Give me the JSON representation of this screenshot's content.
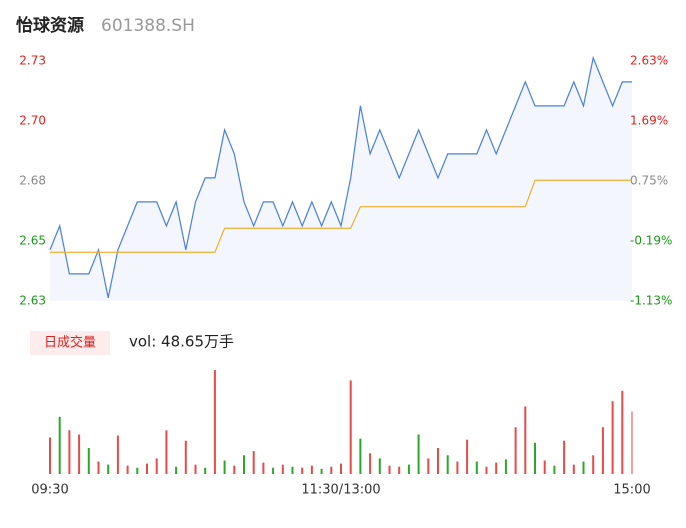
{
  "chart_data": {
    "type": "intraday",
    "title": "怡球资源",
    "code": "601388.SH",
    "volume_tab": "日成交量",
    "volume_label": "vol: 48.65万手",
    "xlim": [
      0,
      240
    ],
    "xticks": [
      {
        "value": 0,
        "label": "09:30"
      },
      {
        "value": 120,
        "label": "11:30/13:00"
      },
      {
        "value": 240,
        "label": "15:00"
      }
    ],
    "ylim": [
      2.6287,
      2.7287
    ],
    "yticks": [
      {
        "value": 2.6287,
        "label": "2.63"
      },
      {
        "value": 2.6537,
        "label": "2.65"
      },
      {
        "value": 2.6787,
        "label": "2.68"
      },
      {
        "value": 2.7037,
        "label": "2.70"
      },
      {
        "value": 2.7287,
        "label": "2.73"
      }
    ],
    "ytick_colors": [
      "#1a9a1a",
      "#1a9a1a",
      "#888888",
      "#e02020",
      "#e02020"
    ],
    "y2ticks": [
      {
        "value": 2.6287,
        "label": "-1.13%"
      },
      {
        "value": 2.6537,
        "label": "-0.19%"
      },
      {
        "value": 2.6787,
        "label": "0.75%"
      },
      {
        "value": 2.7037,
        "label": "1.69%"
      },
      {
        "value": 2.7287,
        "label": "2.63%"
      }
    ],
    "x": [
      0,
      4,
      8,
      12,
      16,
      20,
      24,
      28,
      32,
      36,
      40,
      44,
      48,
      52,
      56,
      60,
      64,
      68,
      72,
      76,
      80,
      84,
      88,
      92,
      96,
      100,
      104,
      108,
      112,
      116,
      120,
      124,
      128,
      132,
      136,
      140,
      144,
      148,
      152,
      156,
      160,
      164,
      168,
      172,
      176,
      180,
      184,
      188,
      192,
      196,
      200,
      204,
      208,
      212,
      216,
      220,
      224,
      228,
      232,
      236,
      240
    ],
    "series": [
      {
        "name": "price",
        "color": "#4a7fe0",
        "values": [
          2.65,
          2.66,
          2.64,
          2.64,
          2.64,
          2.65,
          2.63,
          2.65,
          2.66,
          2.67,
          2.67,
          2.67,
          2.66,
          2.67,
          2.65,
          2.67,
          2.68,
          2.68,
          2.7,
          2.69,
          2.67,
          2.66,
          2.67,
          2.67,
          2.66,
          2.67,
          2.66,
          2.67,
          2.66,
          2.67,
          2.66,
          2.68,
          2.71,
          2.69,
          2.7,
          2.69,
          2.68,
          2.69,
          2.7,
          2.69,
          2.68,
          2.69,
          2.69,
          2.69,
          2.69,
          2.7,
          2.69,
          2.7,
          2.71,
          2.72,
          2.71,
          2.71,
          2.71,
          2.71,
          2.72,
          2.71,
          2.73,
          2.72,
          2.71,
          2.72,
          2.72
        ]
      },
      {
        "name": "average",
        "color": "#f0b030",
        "values": [
          2.649,
          2.649,
          2.649,
          2.649,
          2.649,
          2.649,
          2.649,
          2.649,
          2.649,
          2.649,
          2.649,
          2.649,
          2.649,
          2.649,
          2.649,
          2.649,
          2.649,
          2.649,
          2.659,
          2.659,
          2.659,
          2.659,
          2.659,
          2.659,
          2.659,
          2.659,
          2.659,
          2.659,
          2.659,
          2.659,
          2.659,
          2.659,
          2.668,
          2.668,
          2.668,
          2.668,
          2.668,
          2.668,
          2.668,
          2.668,
          2.668,
          2.668,
          2.668,
          2.668,
          2.668,
          2.668,
          2.668,
          2.668,
          2.668,
          2.668,
          2.679,
          2.679,
          2.679,
          2.679,
          2.679,
          2.679,
          2.679,
          2.679,
          2.679,
          2.679,
          2.679
        ]
      }
    ],
    "volume": {
      "ylim": [
        0,
        10000
      ],
      "values": [
        3500,
        5500,
        4200,
        3800,
        2500,
        1200,
        900,
        3700,
        800,
        600,
        1000,
        1500,
        4200,
        700,
        3200,
        900,
        600,
        10000,
        1300,
        800,
        1800,
        2200,
        1100,
        600,
        900,
        700,
        600,
        800,
        500,
        700,
        1000,
        9000,
        3400,
        2000,
        1500,
        800,
        700,
        900,
        3800,
        1500,
        2500,
        1800,
        1200,
        3300,
        1200,
        700,
        1100,
        1400,
        4500,
        6500,
        3000,
        1300,
        800,
        3200,
        900,
        1200,
        1800,
        4500,
        7000,
        8000,
        6000
      ],
      "colors": [
        "#e84a4a",
        "#2aa82a",
        "#e84a4a",
        "#e84a4a",
        "#2aa82a",
        "#e84a4a",
        "#2aa82a",
        "#e84a4a",
        "#e84a4a",
        "#2aa82a",
        "#e84a4a",
        "#e84a4a",
        "#e84a4a",
        "#2aa82a",
        "#e84a4a",
        "#e84a4a",
        "#2aa82a",
        "#e84a4a",
        "#2aa82a",
        "#e84a4a",
        "#2aa82a",
        "#e84a4a",
        "#e84a4a",
        "#2aa82a",
        "#e84a4a",
        "#2aa82a",
        "#e84a4a",
        "#e84a4a",
        "#2aa82a",
        "#e84a4a",
        "#e84a4a",
        "#e84a4a",
        "#2aa82a",
        "#e84a4a",
        "#2aa82a",
        "#e84a4a",
        "#e84a4a",
        "#2aa82a",
        "#2aa82a",
        "#e84a4a",
        "#e84a4a",
        "#2aa82a",
        "#e84a4a",
        "#e84a4a",
        "#2aa82a",
        "#e84a4a",
        "#e84a4a",
        "#2aa82a",
        "#e84a4a",
        "#e84a4a",
        "#2aa82a",
        "#e84a4a",
        "#2aa82a",
        "#e84a4a",
        "#e84a4a",
        "#2aa82a",
        "#e84a4a",
        "#e84a4a",
        "#e84a4a",
        "#e84a4a",
        "#f4a0a0"
      ]
    }
  }
}
